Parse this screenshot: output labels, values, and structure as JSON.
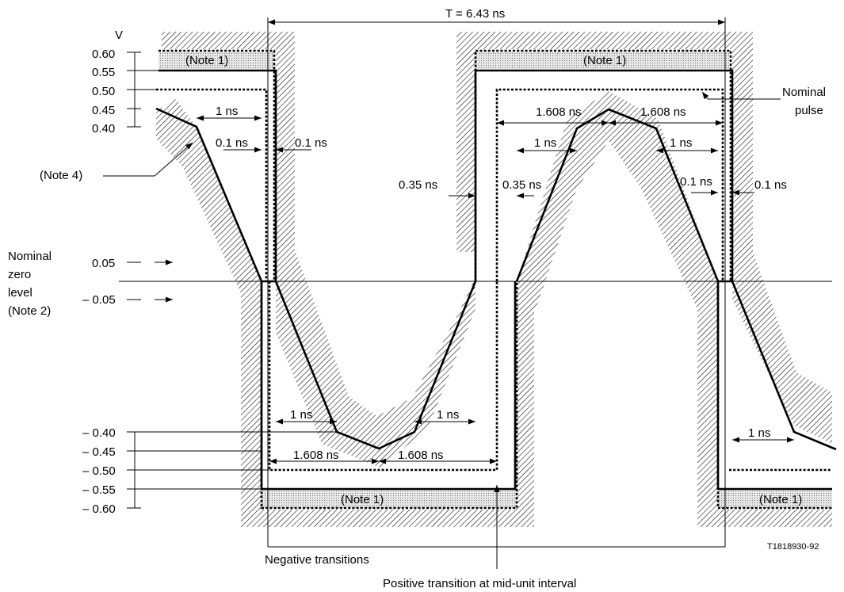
{
  "axis": {
    "unit": "V",
    "ticks": [
      "0.60",
      "0.55",
      "0.50",
      "0.45",
      "0.40",
      "0.05",
      "– 0.05",
      "– 0.40",
      "– 0.45",
      "– 0.50",
      "– 0.55",
      "– 0.60"
    ]
  },
  "period_label": "T = 6.43 ns",
  "nominal_zero_label": [
    "Nominal",
    "zero",
    "level",
    "(Note 2)"
  ],
  "nominal_pulse_label": [
    "Nominal",
    "pulse"
  ],
  "note1": "(Note 1)",
  "note4": "(Note 4)",
  "dimensions": {
    "one_ns": "1 ns",
    "point_one_ns": "0.1 ns",
    "point_three_five_ns": "0.35 ns",
    "one_six_ns": "1.608 ns"
  },
  "negative_transitions": "Negative transitions",
  "positive_transition": "Positive transition at mid-unit interval",
  "figure_id": "T1818930-92"
}
